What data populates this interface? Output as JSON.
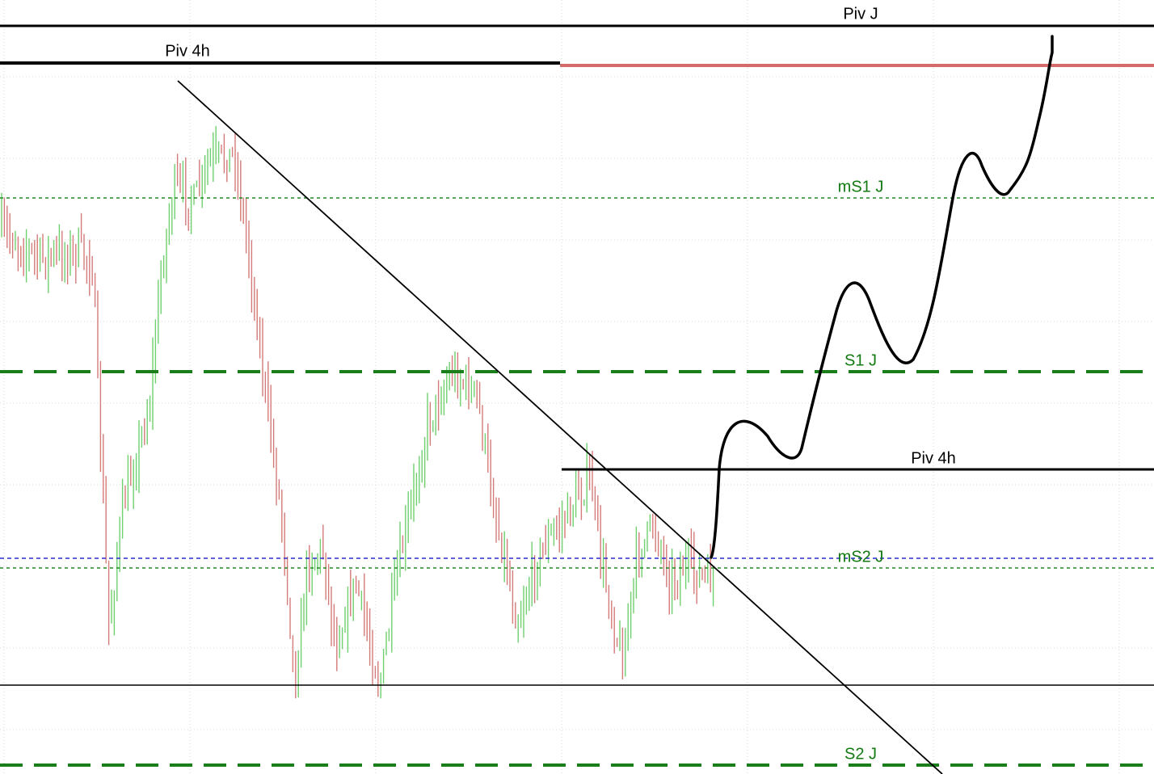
{
  "levels": [
    {
      "label": "Piv J"
    },
    {
      "label": "Piv 4h"
    },
    {
      "label": "mS1 J"
    },
    {
      "label": "S1 J"
    },
    {
      "label": "Piv 4h"
    },
    {
      "label": "mS2 J"
    },
    {
      "label": "S2 J"
    }
  ]
}
